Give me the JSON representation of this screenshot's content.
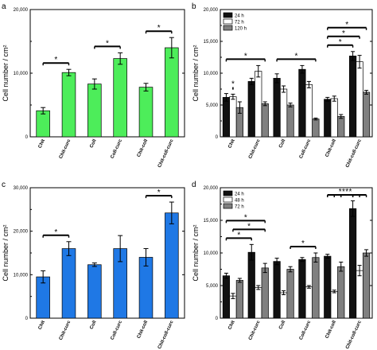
{
  "chart_data": [
    {
      "panel": "a",
      "type": "bar",
      "ylabel": "Cell number / cm²",
      "ylim": [
        0,
        20000
      ],
      "yticks": [
        "0",
        "10,000",
        "20,000"
      ],
      "categories": [
        "Chit",
        "Chit-curc",
        "Coll",
        "Coll-curc",
        "Chit-coll",
        "Chit-coll-curc"
      ],
      "colors": [
        "#4ded5a"
      ],
      "series": [
        {
          "values": [
            4100,
            10100,
            8300,
            12300,
            7800,
            14000
          ],
          "errors": [
            500,
            500,
            800,
            900,
            600,
            1600
          ]
        }
      ],
      "significance": [
        [
          0,
          1
        ],
        [
          2,
          3
        ],
        [
          4,
          5
        ]
      ],
      "grid": false
    },
    {
      "panel": "b",
      "type": "bar",
      "ylabel": "Cell number / cm²",
      "ylim": [
        0,
        20000
      ],
      "yticks": [
        "0",
        "5,000",
        "10,000",
        "15,000",
        "20,000"
      ],
      "categories": [
        "Chit",
        "Chit-curc",
        "Coll",
        "Coll-curc",
        "Chit-coll",
        "Chit-coll-curc"
      ],
      "legend": [
        "24 h",
        "72 h",
        "120 h"
      ],
      "legend_position": "top-left",
      "colors": [
        "#111111",
        "#ffffff",
        "#808080"
      ],
      "series": [
        {
          "name": "24 h",
          "values": [
            6200,
            8700,
            9200,
            10600,
            5900,
            12700
          ],
          "errors": [
            600,
            500,
            700,
            600,
            300,
            700
          ]
        },
        {
          "name": "72 h",
          "values": [
            6300,
            10300,
            7500,
            8200,
            6000,
            11800
          ],
          "errors": [
            400,
            900,
            500,
            500,
            400,
            1000
          ]
        },
        {
          "name": "120 h",
          "values": [
            4600,
            5200,
            5000,
            2800,
            3200,
            7000
          ],
          "errors": [
            900,
            300,
            300,
            150,
            300,
            300
          ]
        }
      ],
      "significance": [
        [
          0,
          1,
          0,
          1
        ],
        [
          0,
          0,
          1,
          2
        ],
        [
          2,
          0,
          3,
          2
        ],
        [
          4,
          0,
          5,
          0
        ],
        [
          4,
          0,
          5,
          1
        ],
        [
          4,
          0,
          5,
          2
        ]
      ],
      "grid": false
    },
    {
      "panel": "c",
      "type": "bar",
      "ylabel": "Cell number / cm²",
      "ylim": [
        0,
        30000
      ],
      "yticks": [
        "0",
        "10,000",
        "20,000",
        "30,000"
      ],
      "categories": [
        "Chit",
        "Chit-curc",
        "Coll",
        "Coll-curc",
        "Chit-coll",
        "Chit-coll-curc"
      ],
      "colors": [
        "#1f78e5"
      ],
      "series": [
        {
          "values": [
            9500,
            16000,
            12300,
            16000,
            14000,
            24200
          ],
          "errors": [
            1400,
            1600,
            400,
            3000,
            2000,
            2500
          ]
        }
      ],
      "significance": [
        [
          0,
          1
        ],
        [
          4,
          5
        ]
      ],
      "grid": false
    },
    {
      "panel": "d",
      "type": "bar",
      "ylabel": "Cell number / cm²",
      "ylim": [
        0,
        20000
      ],
      "yticks": [
        "0",
        "5,000",
        "10,000",
        "15,000",
        "20,000"
      ],
      "categories": [
        "Chit",
        "Chit-curc",
        "Coll",
        "Coll-curc",
        "Chit-coll",
        "Chit-coll-curc"
      ],
      "legend": [
        "24 h",
        "48 h",
        "72 h"
      ],
      "legend_position": "top-left",
      "colors": [
        "#111111",
        "#ffffff",
        "#808080"
      ],
      "series": [
        {
          "name": "24 h",
          "values": [
            6500,
            10100,
            8700,
            9000,
            9500,
            16800
          ],
          "errors": [
            400,
            1200,
            500,
            300,
            300,
            1200
          ]
        },
        {
          "name": "48 h",
          "values": [
            3400,
            4700,
            3900,
            4800,
            4100,
            7300
          ],
          "errors": [
            400,
            300,
            300,
            200,
            200,
            800
          ]
        },
        {
          "name": "72 h",
          "values": [
            5800,
            7700,
            7500,
            9300,
            7900,
            10000
          ],
          "errors": [
            300,
            700,
            400,
            700,
            700,
            500
          ]
        }
      ],
      "significance": [
        [
          0,
          0,
          1,
          0
        ],
        [
          0,
          1,
          1,
          2
        ],
        [
          0,
          0,
          1,
          2
        ],
        [
          2,
          2,
          3,
          2
        ],
        [
          4,
          0,
          5,
          0
        ],
        [
          4,
          0,
          5,
          1
        ],
        [
          4,
          2,
          5,
          0
        ],
        [
          4,
          1,
          5,
          2
        ]
      ],
      "grid": false
    }
  ]
}
